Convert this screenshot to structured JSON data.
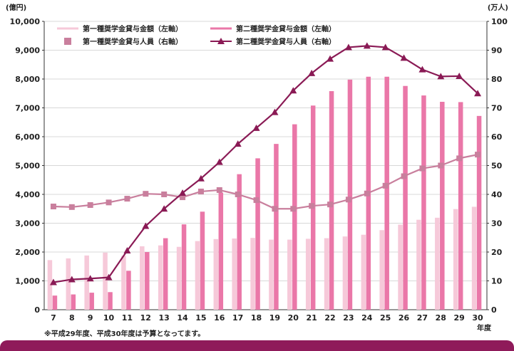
{
  "chart_data": {
    "type": "bar+line",
    "left_axis_unit": "(億円)",
    "right_axis_unit": "(万人)",
    "x_axis_unit": "年度",
    "categories": [
      "7",
      "8",
      "9",
      "10",
      "11",
      "12",
      "13",
      "14",
      "15",
      "16",
      "17",
      "18",
      "19",
      "20",
      "21",
      "22",
      "23",
      "24",
      "25",
      "26",
      "27",
      "28",
      "29",
      "30"
    ],
    "left_ylim": [
      0,
      10000
    ],
    "left_ticks": [
      "0",
      "1,000",
      "2,000",
      "3,000",
      "4,000",
      "5,000",
      "6,000",
      "7,000",
      "8,000",
      "9,000",
      "10,000"
    ],
    "right_ylim": [
      0,
      100
    ],
    "right_ticks": [
      "0",
      "10",
      "20",
      "30",
      "40",
      "50",
      "60",
      "70",
      "80",
      "90",
      "100"
    ],
    "grid": true,
    "legend_position": "top-left",
    "series": [
      {
        "name": "第一種奨学金貸与金額（左軸）",
        "kind": "bar",
        "axis": "left",
        "color": "#f6c9d9",
        "values": [
          1720,
          1780,
          1880,
          1980,
          1870,
          2200,
          2230,
          2180,
          2380,
          2450,
          2470,
          2490,
          2430,
          2430,
          2460,
          2480,
          2540,
          2600,
          2760,
          2950,
          3120,
          3190,
          3490,
          3570
        ]
      },
      {
        "name": "第二種奨学金貸与金額（左軸）",
        "kind": "bar",
        "axis": "left",
        "color": "#ea77a8",
        "values": [
          490,
          530,
          590,
          610,
          1350,
          2000,
          2480,
          2960,
          3400,
          4060,
          4700,
          5250,
          5750,
          6430,
          7080,
          7580,
          7980,
          8080,
          8080,
          7760,
          7430,
          7210,
          7200,
          6720
        ]
      },
      {
        "name": "第一種奨学金貸与人員（右軸）",
        "kind": "line",
        "axis": "right",
        "color": "#c97f9d",
        "marker": "square",
        "values": [
          35.8,
          35.6,
          36.3,
          37.2,
          38.5,
          40.2,
          40.0,
          39.0,
          41.0,
          41.5,
          40.0,
          38.0,
          35.0,
          35.0,
          36.0,
          36.5,
          38.2,
          40.3,
          43.0,
          46.3,
          49.0,
          50.0,
          52.5,
          53.8
        ]
      },
      {
        "name": "第二種奨学金貸与人員（右軸）",
        "kind": "line",
        "axis": "right",
        "color": "#8a1a55",
        "marker": "triangle",
        "values": [
          9.5,
          10.5,
          10.8,
          11.2,
          20.5,
          29.0,
          35.0,
          40.5,
          45.5,
          51.2,
          57.5,
          63.0,
          68.5,
          76.0,
          82.0,
          87.0,
          91.0,
          91.5,
          91.0,
          87.3,
          83.3,
          80.9,
          81.0,
          75.0
        ]
      }
    ],
    "footnote": "※平成29年度、平成30年度は予算となってます。"
  }
}
